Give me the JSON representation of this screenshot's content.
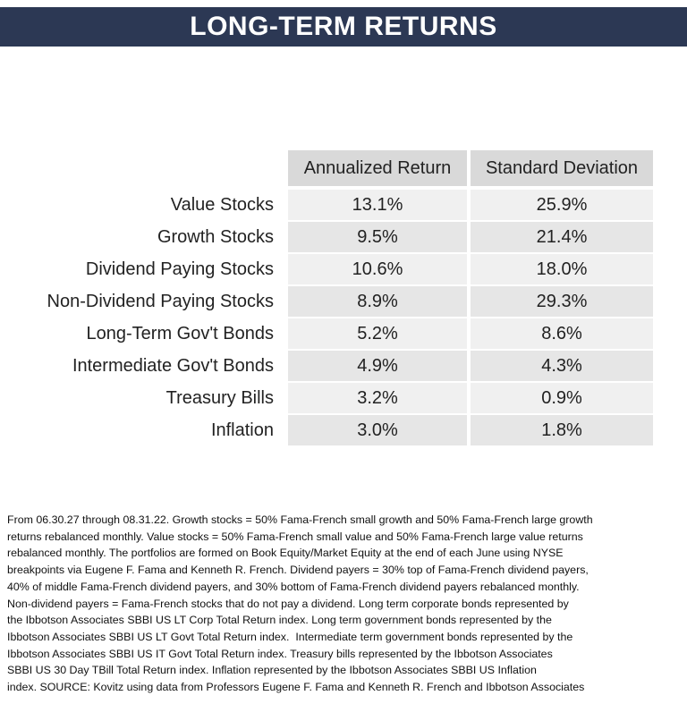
{
  "header": {
    "title": "LONG-TERM RETURNS"
  },
  "table": {
    "columns": [
      "Annualized Return",
      "Standard Deviation"
    ],
    "rows": [
      [
        "Value Stocks",
        "13.1%",
        "25.9%"
      ],
      [
        "Growth Stocks",
        "9.5%",
        "21.4%"
      ],
      [
        "Dividend Paying Stocks",
        "10.6%",
        "18.0%"
      ],
      [
        "Non-Dividend Paying Stocks",
        "8.9%",
        "29.3%"
      ],
      [
        "Long-Term Gov't Bonds",
        "5.2%",
        "8.6%"
      ],
      [
        "Intermediate Gov't Bonds",
        "4.9%",
        "4.3%"
      ],
      [
        "Treasury Bills",
        "3.2%",
        "0.9%"
      ],
      [
        "Inflation",
        "3.0%",
        "1.8%"
      ]
    ]
  },
  "footnote": {
    "lines": [
      "From 06.30.27 through 08.31.22. Growth stocks = 50% Fama-French small growth and 50% Fama-French large growth",
      "returns rebalanced monthly. Value stocks = 50% Fama-French small value and 50% Fama-French large value returns",
      "rebalanced monthly. The portfolios are formed on Book Equity/Market Equity at the end of each June using NYSE",
      "breakpoints via Eugene F. Fama and Kenneth R. French. Dividend payers = 30% top of Fama-French dividend payers,",
      "40% of middle Fama-French dividend payers, and 30% bottom of Fama-French dividend payers rebalanced monthly.",
      "Non-dividend payers = Fama-French stocks that do not pay a dividend. Long term corporate bonds represented by",
      "the Ibbotson Associates SBBI US LT Corp Total Return index. Long term government bonds represented by the",
      "Ibbotson Associates SBBI US LT Govt Total Return index.  Intermediate term government bonds represented by the",
      "Ibbotson Associates SBBI US IT Govt Total Return index. Treasury bills represented by the Ibbotson Associates",
      "SBBI US 30 Day TBill Total Return index. Inflation represented by the Ibbotson Associates SBBI US Inflation",
      "index. SOURCE: Kovitz using data from Professors Eugene F. Fama and Kenneth R. French and Ibbotson Associates"
    ]
  }
}
